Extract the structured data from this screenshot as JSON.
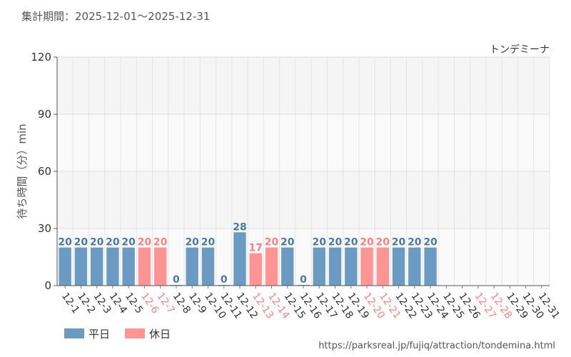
{
  "header": {
    "period_label": "集計期間：2025-12-01～2025-12-31"
  },
  "chart_data": {
    "type": "bar",
    "title": "トンデミーナ",
    "xlabel": "",
    "ylabel": "待ち時間（分）min",
    "ylim": [
      0,
      120
    ],
    "yticks": [
      0,
      30,
      60,
      90,
      120
    ],
    "grid": true,
    "categories": [
      "12-1",
      "12-2",
      "12-3",
      "12-4",
      "12-5",
      "12-6",
      "12-7",
      "12-8",
      "12-9",
      "12-10",
      "12-11",
      "12-12",
      "12-13",
      "12-14",
      "12-15",
      "12-16",
      "12-17",
      "12-18",
      "12-19",
      "12-20",
      "12-21",
      "12-22",
      "12-23",
      "12-24",
      "12-25",
      "12-26",
      "12-27",
      "12-28",
      "12-29",
      "12-30",
      "12-31"
    ],
    "values": [
      20,
      20,
      20,
      20,
      20,
      20,
      20,
      0,
      20,
      20,
      0,
      28,
      17,
      20,
      20,
      0,
      20,
      20,
      20,
      20,
      20,
      20,
      20,
      20,
      null,
      null,
      null,
      null,
      null,
      null,
      null
    ],
    "day_types": [
      "weekday",
      "weekday",
      "weekday",
      "weekday",
      "weekday",
      "holiday",
      "holiday",
      "weekday",
      "weekday",
      "weekday",
      "weekday",
      "weekday",
      "holiday",
      "holiday",
      "weekday",
      "weekday",
      "weekday",
      "weekday",
      "weekday",
      "holiday",
      "holiday",
      "weekday",
      "weekday",
      "weekday",
      "weekday",
      "weekday",
      "holiday",
      "holiday",
      "weekday",
      "weekday",
      "weekday"
    ],
    "legend": [
      {
        "key": "weekday",
        "label": "平日",
        "color": "#6b9bc3"
      },
      {
        "key": "holiday",
        "label": "休日",
        "color": "#ff9494"
      }
    ],
    "label_colors": {
      "weekday": "#4a7aa3",
      "holiday": "#ff8080",
      "tick_weekday": "#333333",
      "tick_holiday": "#ff8080"
    },
    "legend_position": "bottom-left"
  },
  "footer": {
    "source_url": "https://parksreal.jp/fujiq/attraction/tondemina.html"
  }
}
